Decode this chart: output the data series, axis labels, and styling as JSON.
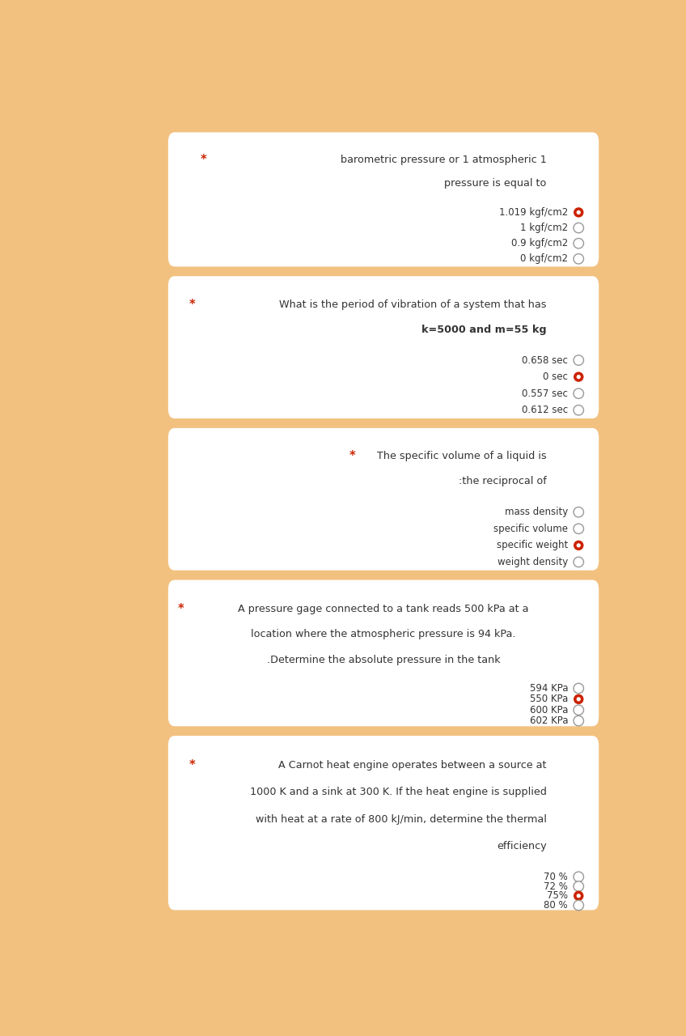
{
  "bg_color": "#F2C180",
  "card_color": "#FFFFFF",
  "text_color": "#333333",
  "star_color": "#CC2200",
  "radio_empty_edge": "#999999",
  "radio_filled_color": "#CC2200",
  "fig_width": 8.48,
  "fig_height": 12.8,
  "questions": [
    {
      "question_lines": [
        "barometric pressure or 1 atmospheric 1",
        "pressure is equal to"
      ],
      "q_bold_line": -1,
      "star_inline": false,
      "star_indent": 0.06,
      "q_indent": 0.38,
      "q_align": "right",
      "options": [
        {
          "text": "1.019 kgf/cm2",
          "selected": true
        },
        {
          "text": "1 kgf/cm2",
          "selected": false
        },
        {
          "text": "0.9 kgf/cm2",
          "selected": false
        },
        {
          "text": "0 kgf/cm2",
          "selected": false
        }
      ]
    },
    {
      "question_lines": [
        "What is the period of vibration of a system that has",
        "k=5000 and m=55 kg"
      ],
      "q_bold_line": 1,
      "star_inline": false,
      "star_indent": 0.04,
      "q_indent": 0.12,
      "q_align": "right",
      "options": [
        {
          "text": "0.658 sec",
          "selected": false
        },
        {
          "text": "0 sec",
          "selected": true
        },
        {
          "text": "0.557 sec",
          "selected": false
        },
        {
          "text": "0.612 sec",
          "selected": false
        }
      ]
    },
    {
      "question_lines": [
        "The specific volume of a liquid is",
        ":the reciprocal of"
      ],
      "q_bold_line": -1,
      "star_inline": false,
      "star_indent": 0.34,
      "q_indent": 0.38,
      "q_align": "right",
      "options": [
        {
          "text": "mass density",
          "selected": false
        },
        {
          "text": "specific volume",
          "selected": false
        },
        {
          "text": "specific weight",
          "selected": true
        },
        {
          "text": "weight density",
          "selected": false
        }
      ]
    },
    {
      "question_lines": [
        "A pressure gage connected to a tank reads 500 kPa at a",
        "location where the atmospheric pressure is 94 kPa.",
        ".Determine the absolute pressure in the tank"
      ],
      "q_bold_line": -1,
      "star_inline": true,
      "star_indent": 0.02,
      "q_indent": 0.08,
      "q_align": "center",
      "options": [
        {
          "text": "594 KPa",
          "selected": false
        },
        {
          "text": "550 KPa",
          "selected": true
        },
        {
          "text": "600 KPa",
          "selected": false
        },
        {
          "text": "602 KPa",
          "selected": false
        }
      ]
    },
    {
      "question_lines": [
        "A Carnot heat engine operates between a source at",
        "1000 K and a sink at 300 K. If the heat engine is supplied",
        "with heat at a rate of 800 kJ/min, determine the thermal",
        "efficiency"
      ],
      "q_bold_line": -1,
      "star_inline": false,
      "star_indent": 0.04,
      "q_indent": 0.08,
      "q_align": "right",
      "options": [
        {
          "text": "70 %",
          "selected": false
        },
        {
          "text": "72 %",
          "selected": false
        },
        {
          "text": "75%",
          "selected": true
        },
        {
          "text": "80 %",
          "selected": false
        }
      ]
    }
  ]
}
